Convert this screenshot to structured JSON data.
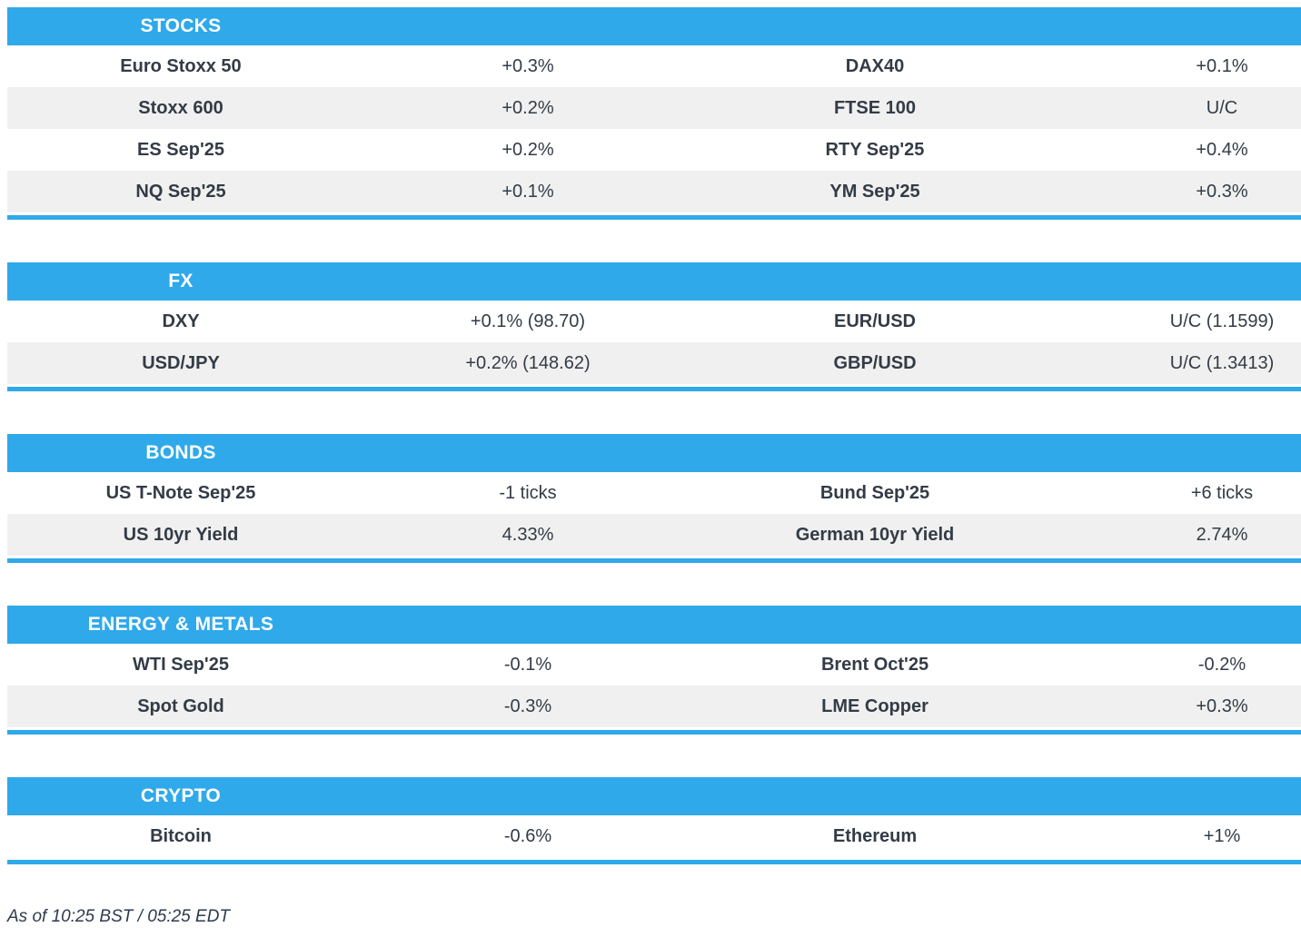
{
  "colors": {
    "accent": "#2fa9ea",
    "row_alt": "#f0f0f0",
    "text": "#333b46",
    "footer_text": "#2e3a4c"
  },
  "sections": [
    {
      "title": "STOCKS",
      "rows": [
        [
          "Euro Stoxx 50",
          "+0.3%",
          "DAX40",
          "+0.1%"
        ],
        [
          "Stoxx 600",
          "+0.2%",
          "FTSE 100",
          "U/C"
        ],
        [
          "ES Sep'25",
          "+0.2%",
          "RTY Sep'25",
          "+0.4%"
        ],
        [
          "NQ Sep'25",
          "+0.1%",
          "YM Sep'25",
          "+0.3%"
        ]
      ]
    },
    {
      "title": "FX",
      "rows": [
        [
          "DXY",
          "+0.1% (98.70)",
          "EUR/USD",
          "U/C (1.1599)"
        ],
        [
          "USD/JPY",
          "+0.2% (148.62)",
          "GBP/USD",
          "U/C (1.3413)"
        ]
      ]
    },
    {
      "title": "BONDS",
      "rows": [
        [
          "US T-Note Sep'25",
          "-1 ticks",
          "Bund Sep'25",
          "+6 ticks"
        ],
        [
          "US 10yr Yield",
          "4.33%",
          "German 10yr Yield",
          "2.74%"
        ]
      ]
    },
    {
      "title": "ENERGY & METALS",
      "rows": [
        [
          "WTI Sep'25",
          "-0.1%",
          "Brent Oct'25",
          "-0.2%"
        ],
        [
          "Spot Gold",
          "-0.3%",
          "LME Copper",
          "+0.3%"
        ]
      ]
    },
    {
      "title": "CRYPTO",
      "rows": [
        [
          "Bitcoin",
          "-0.6%",
          "Ethereum",
          "+1%"
        ]
      ]
    }
  ],
  "footer": {
    "text": "As of 10:25 BST / 05:25 EDT"
  }
}
